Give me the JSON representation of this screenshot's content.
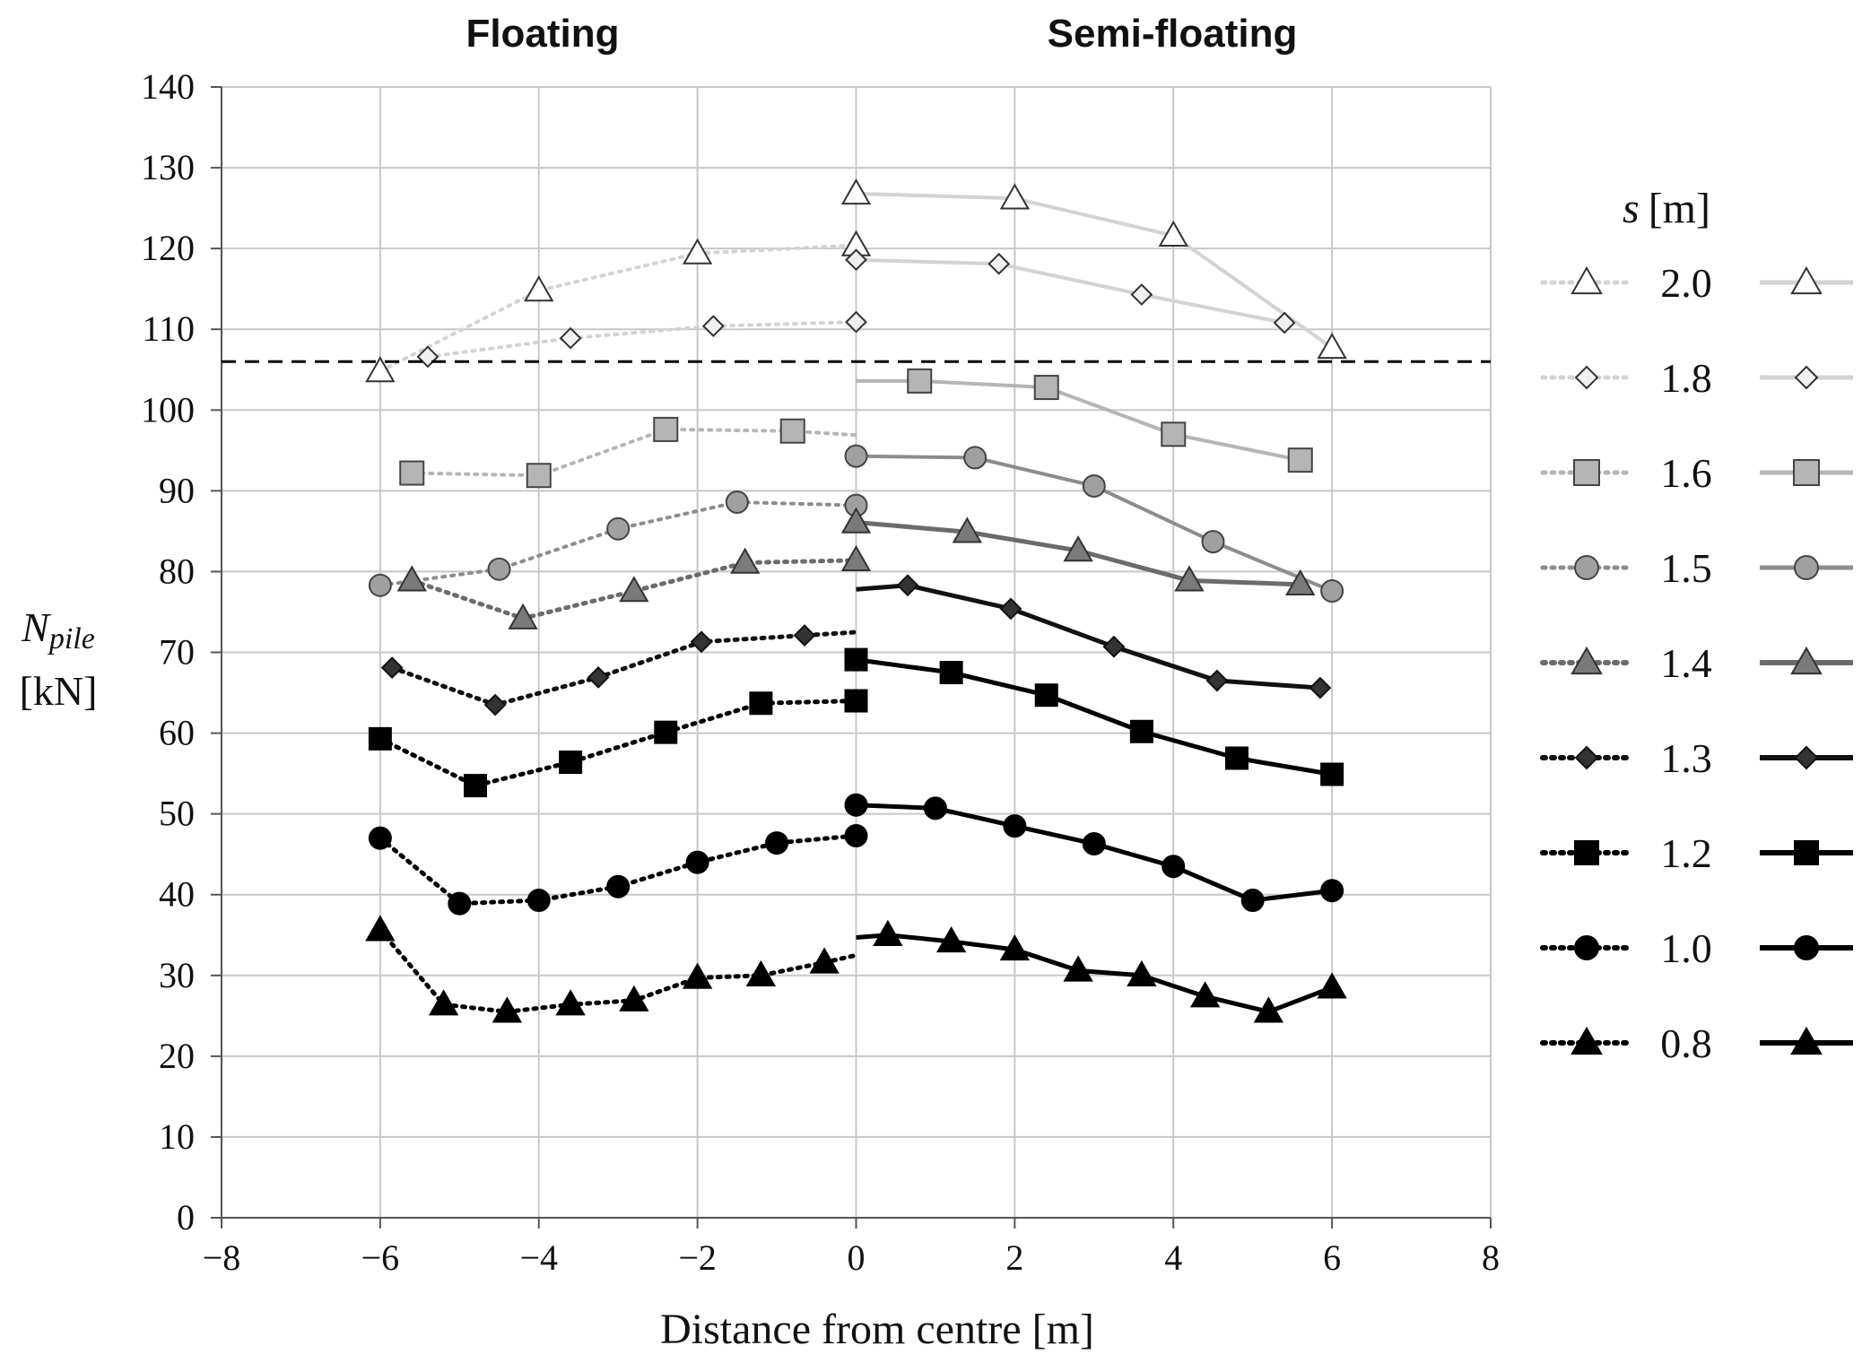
{
  "chart_data": {
    "type": "line",
    "panel_titles": [
      "Floating",
      "Semi-floating"
    ],
    "xlabel": "Distance from centre [m]",
    "ylabel_main": "N",
    "ylabel_sub": "pile",
    "ylabel_unit": "[kN]",
    "xlim": [
      -8,
      8
    ],
    "ylim": [
      0,
      140
    ],
    "xticks": [
      -8,
      -6,
      -4,
      -2,
      0,
      2,
      4,
      6,
      8
    ],
    "xtick_labels": [
      "−8",
      "−6",
      "−4",
      "−2",
      "0",
      "2",
      "4",
      "6",
      "8"
    ],
    "yticks": [
      0,
      10,
      20,
      30,
      40,
      50,
      60,
      70,
      80,
      90,
      100,
      110,
      120,
      130,
      140
    ],
    "ytick_labels": [
      "0",
      "10",
      "20",
      "30",
      "40",
      "50",
      "60",
      "70",
      "80",
      "90",
      "100",
      "110",
      "120",
      "130",
      "140"
    ],
    "grid": true,
    "reference_line": {
      "y": 106,
      "style": "dashed"
    },
    "legend_title_var": "s",
    "legend_title_unit": "[m]",
    "series": [
      {
        "s": "2.0",
        "color": "#d3d3d3",
        "marker": "triangle",
        "fill": "#ffffff",
        "stroke": "#333333",
        "marker_size": 13,
        "line_width": 4,
        "floating": {
          "x": [
            -6,
            -4,
            -2,
            0
          ],
          "y": [
            104.8,
            114.8,
            119.4,
            120.4
          ]
        },
        "semi_floating": {
          "x": [
            0,
            2,
            4,
            6
          ],
          "y": [
            126.8,
            126.2,
            121.6,
            107.7
          ]
        }
      },
      {
        "s": "1.8",
        "color": "#d3d3d3",
        "marker": "diamond",
        "fill": "#f0f0f0",
        "stroke": "#333333",
        "marker_size": 11,
        "line_width": 4,
        "floating": {
          "x": [
            -5.4,
            -3.6,
            -1.8,
            0
          ],
          "y": [
            106.6,
            108.9,
            110.4,
            110.9
          ]
        },
        "semi_floating": {
          "x": [
            0,
            1.8,
            3.6,
            5.4
          ],
          "y": [
            118.6,
            118.1,
            114.3,
            110.8
          ]
        }
      },
      {
        "s": "1.6",
        "color": "#b5b5b5",
        "marker": "square",
        "fill": "#b5b5b5",
        "stroke": "#444444",
        "marker_size": 13,
        "line_width": 4,
        "floating": {
          "x": [
            -5.6,
            -4,
            -2.4,
            -0.8,
            0
          ],
          "y": [
            92.2,
            91.9,
            97.6,
            97.4,
            96.9
          ]
        },
        "semi_floating": {
          "x": [
            0,
            0.8,
            2.4,
            4,
            5.6
          ],
          "y": [
            103.6,
            103.6,
            102.8,
            97.0,
            93.8
          ]
        }
      },
      {
        "s": "1.5",
        "color": "#8c8c8c",
        "marker": "circle",
        "fill": "#a0a0a0",
        "stroke": "#444444",
        "marker_size": 12,
        "line_width": 4,
        "floating": {
          "x": [
            -6,
            -4.5,
            -3,
            -1.5,
            0
          ],
          "y": [
            78.3,
            80.3,
            85.3,
            88.6,
            88.2
          ]
        },
        "semi_floating": {
          "x": [
            0,
            1.5,
            3,
            4.5,
            6
          ],
          "y": [
            94.3,
            94.1,
            90.6,
            83.7,
            77.6
          ]
        }
      },
      {
        "s": "1.4",
        "color": "#6b6b6b",
        "marker": "triangle",
        "fill": "#7a7a7a",
        "stroke": "#333333",
        "marker_size": 13,
        "line_width": 5,
        "floating": {
          "x": [
            -5.6,
            -4.2,
            -2.8,
            -1.4,
            0
          ],
          "y": [
            78.9,
            74.2,
            77.6,
            81.1,
            81.4
          ]
        },
        "semi_floating": {
          "x": [
            0,
            1.4,
            2.8,
            4.2,
            5.6
          ],
          "y": [
            86.1,
            84.9,
            82.6,
            78.9,
            78.4
          ]
        }
      },
      {
        "s": "1.3",
        "color": "#111111",
        "marker": "diamond",
        "fill": "#333333",
        "stroke": "#111111",
        "marker_size": 11,
        "line_width": 5,
        "floating": {
          "x": [
            -5.85,
            -4.55,
            -3.25,
            -1.95,
            -0.65,
            0
          ],
          "y": [
            68.1,
            63.5,
            66.9,
            71.3,
            72.1,
            72.5
          ]
        },
        "semi_floating": {
          "x": [
            0,
            0.65,
            1.95,
            3.25,
            4.55,
            5.85
          ],
          "y": [
            77.8,
            78.3,
            75.4,
            70.7,
            66.5,
            65.6
          ]
        }
      },
      {
        "s": "1.2",
        "color": "#000000",
        "marker": "square",
        "fill": "#000000",
        "stroke": "#000000",
        "marker_size": 12,
        "line_width": 5,
        "floating": {
          "x": [
            -6,
            -4.8,
            -3.6,
            -2.4,
            -1.2,
            0
          ],
          "y": [
            59.3,
            53.5,
            56.4,
            60.1,
            63.7,
            64.0
          ]
        },
        "semi_floating": {
          "x": [
            0,
            1.2,
            2.4,
            3.6,
            4.8,
            6
          ],
          "y": [
            69.1,
            67.5,
            64.7,
            60.2,
            56.9,
            54.9
          ]
        }
      },
      {
        "s": "1.0",
        "color": "#000000",
        "marker": "circle",
        "fill": "#000000",
        "stroke": "#000000",
        "marker_size": 12,
        "line_width": 5,
        "floating": {
          "x": [
            -6,
            -5,
            -4,
            -3,
            -2,
            -1,
            0
          ],
          "y": [
            47.0,
            38.9,
            39.3,
            41.0,
            44.0,
            46.4,
            47.3
          ]
        },
        "semi_floating": {
          "x": [
            0,
            1,
            2,
            3,
            4,
            5,
            6
          ],
          "y": [
            51.1,
            50.7,
            48.5,
            46.3,
            43.5,
            39.3,
            40.5
          ]
        }
      },
      {
        "s": "0.8",
        "color": "#000000",
        "marker": "triangle",
        "fill": "#000000",
        "stroke": "#000000",
        "marker_size": 13,
        "line_width": 5,
        "floating": {
          "x": [
            -6,
            -5.2,
            -4.4,
            -3.6,
            -2.8,
            -2,
            -1.2,
            -0.4,
            0
          ],
          "y": [
            35.6,
            26.4,
            25.5,
            26.4,
            26.9,
            29.7,
            30.0,
            31.6,
            32.5
          ]
        },
        "semi_floating": {
          "x": [
            0,
            0.4,
            1.2,
            2,
            2.8,
            3.6,
            4.4,
            5.2,
            6
          ],
          "y": [
            34.7,
            35.0,
            34.2,
            33.2,
            30.6,
            30.0,
            27.4,
            25.5,
            28.5
          ]
        }
      }
    ]
  }
}
